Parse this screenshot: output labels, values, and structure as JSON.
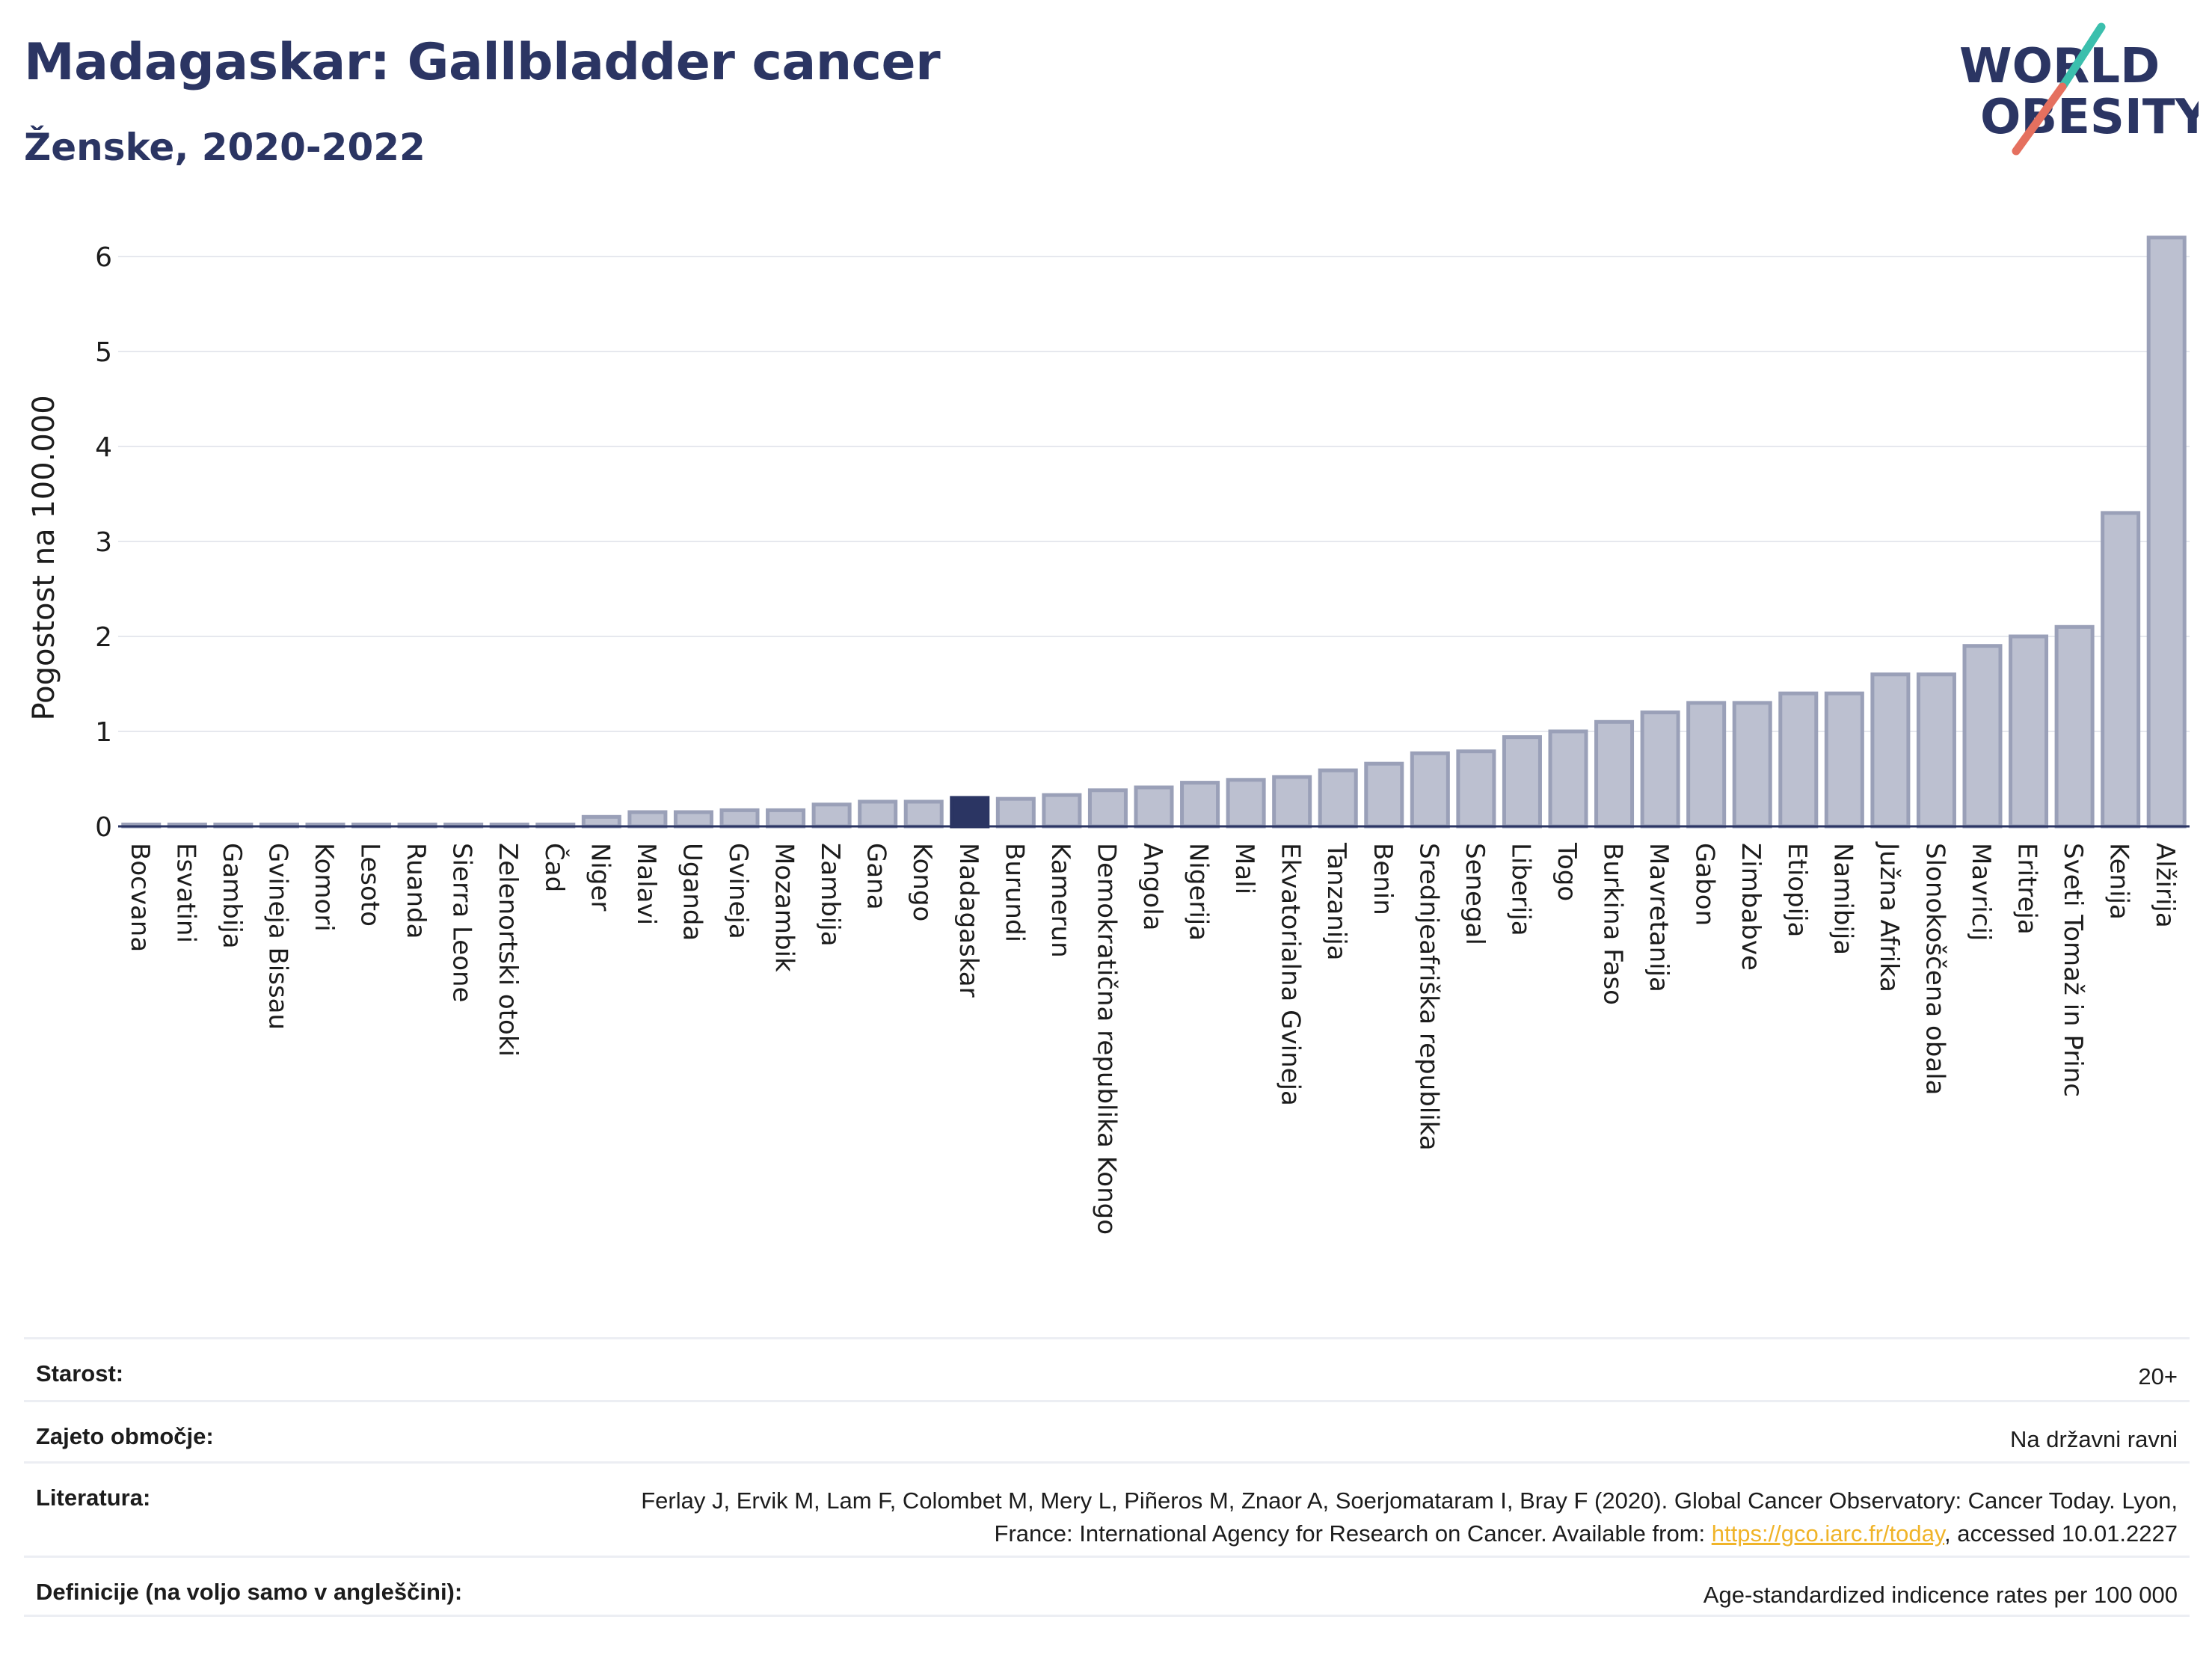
{
  "header": {
    "title": "Madagaskar: Gallbladder cancer",
    "subtitle": "Ženske, 2020-2022"
  },
  "logo": {
    "line1": "WORLD",
    "line2": "OBESITY",
    "colors": {
      "text": "#2b3563",
      "slash_teal": "#3bbfad",
      "slash_red": "#e5705f"
    }
  },
  "colors": {
    "bar_default_fill": "#bcc0d0",
    "bar_default_stroke": "#9aa0b8",
    "bar_highlight": "#2b3563",
    "grid": "#e6e8ee",
    "axis": "#2b3563"
  },
  "chart_data": {
    "type": "bar",
    "title": "Madagaskar: Gallbladder cancer",
    "subtitle": "Ženske, 2020-2022",
    "ylabel": "Pogostost na 100.000",
    "xlabel": "",
    "ylim": [
      0,
      6.6
    ],
    "yticks": [
      0,
      1,
      2,
      3,
      4,
      5,
      6
    ],
    "grid": true,
    "highlight": "Madagaskar",
    "categories": [
      "Bocvana",
      "Esvatini",
      "Gambija",
      "Gvineja Bissau",
      "Komori",
      "Lesoto",
      "Ruanda",
      "Sierra Leone",
      "Zelenortski otoki",
      "Čad",
      "Niger",
      "Malavi",
      "Uganda",
      "Gvineja",
      "Mozambik",
      "Zambija",
      "Gana",
      "Kongo",
      "Madagaskar",
      "Burundi",
      "Kamerun",
      "Demokratična republika Kongo",
      "Angola",
      "Nigerija",
      "Mali",
      "Ekvatorialna Gvineja",
      "Tanzanija",
      "Benin",
      "Srednjeafriška republika",
      "Senegal",
      "Liberija",
      "Togo",
      "Burkina Faso",
      "Mavretanija",
      "Gabon",
      "Zimbabve",
      "Etiopija",
      "Namibija",
      "Južna Afrika",
      "Slonokoščena obala",
      "Mavricij",
      "Eritreja",
      "Sveti Tomaž in Princ",
      "Kenija",
      "Alžirija"
    ],
    "values": [
      0.02,
      0.02,
      0.02,
      0.02,
      0.02,
      0.02,
      0.02,
      0.02,
      0.02,
      0.02,
      0.1,
      0.15,
      0.15,
      0.17,
      0.17,
      0.23,
      0.26,
      0.26,
      0.3,
      0.29,
      0.33,
      0.38,
      0.41,
      0.46,
      0.49,
      0.52,
      0.59,
      0.66,
      0.77,
      0.79,
      0.94,
      1.0,
      1.1,
      1.2,
      1.3,
      1.3,
      1.4,
      1.4,
      1.6,
      1.6,
      1.9,
      2.0,
      2.1,
      3.3,
      6.2
    ]
  },
  "info": {
    "rows": [
      {
        "label": "Starost:",
        "value": "20+"
      },
      {
        "label": "Zajeto območje:",
        "value": "Na državni ravni"
      },
      {
        "label": "Literatura:",
        "value_before_link": "Ferlay J, Ervik M, Lam F, Colombet M, Mery L, Piñeros M, Znaor A, Soerjomataram I, Bray F (2020). Global Cancer Observatory: Cancer Today. Lyon, France: International Agency for Research on Cancer. Available from: ",
        "link_text": "https://gco.iarc.fr/today",
        "value_after_link": ", accessed 10.01.2227"
      },
      {
        "label": "Definicije (na voljo samo v angleščini):",
        "value": "Age-standardized indicence rates per 100 000"
      }
    ]
  }
}
